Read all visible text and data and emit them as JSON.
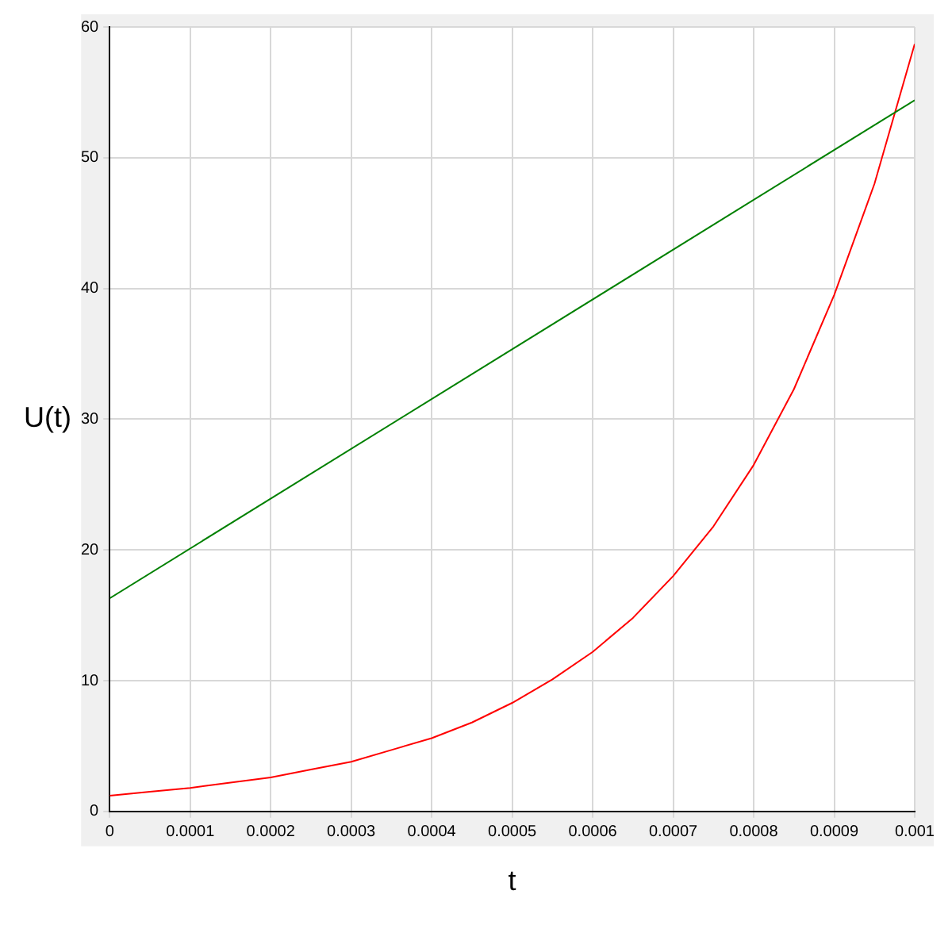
{
  "chart_data": {
    "type": "line",
    "xlabel": "t",
    "ylabel": "U(t)",
    "xlim": [
      0,
      0.001
    ],
    "ylim": [
      0,
      60
    ],
    "xticks": [
      0,
      0.0001,
      0.0002,
      0.0003,
      0.0004,
      0.0005,
      0.0006,
      0.0007,
      0.0008,
      0.0009,
      0.001
    ],
    "yticks": [
      0,
      10,
      20,
      30,
      40,
      50,
      60
    ],
    "grid": true,
    "legend": false,
    "marker": "none",
    "line_style": "solid",
    "series": [
      {
        "color": "#008000",
        "x": [
          0,
          0.001
        ],
        "values": [
          16.3,
          54.4
        ]
      },
      {
        "color": "#ff0000",
        "x": [
          0,
          5e-05,
          0.0001,
          0.00015,
          0.0002,
          0.00025,
          0.0003,
          0.00035,
          0.0004,
          0.00045,
          0.0005,
          0.00055,
          0.0006,
          0.00065,
          0.0007,
          0.00075,
          0.0008,
          0.00085,
          0.0009,
          0.00095,
          0.001
        ],
        "values": [
          1.2,
          1.5,
          1.8,
          2.2,
          2.6,
          3.2,
          3.8,
          4.7,
          5.6,
          6.8,
          8.3,
          10.1,
          12.2,
          14.8,
          18.0,
          21.8,
          26.5,
          32.3,
          39.5,
          48.0,
          58.7
        ]
      }
    ]
  }
}
